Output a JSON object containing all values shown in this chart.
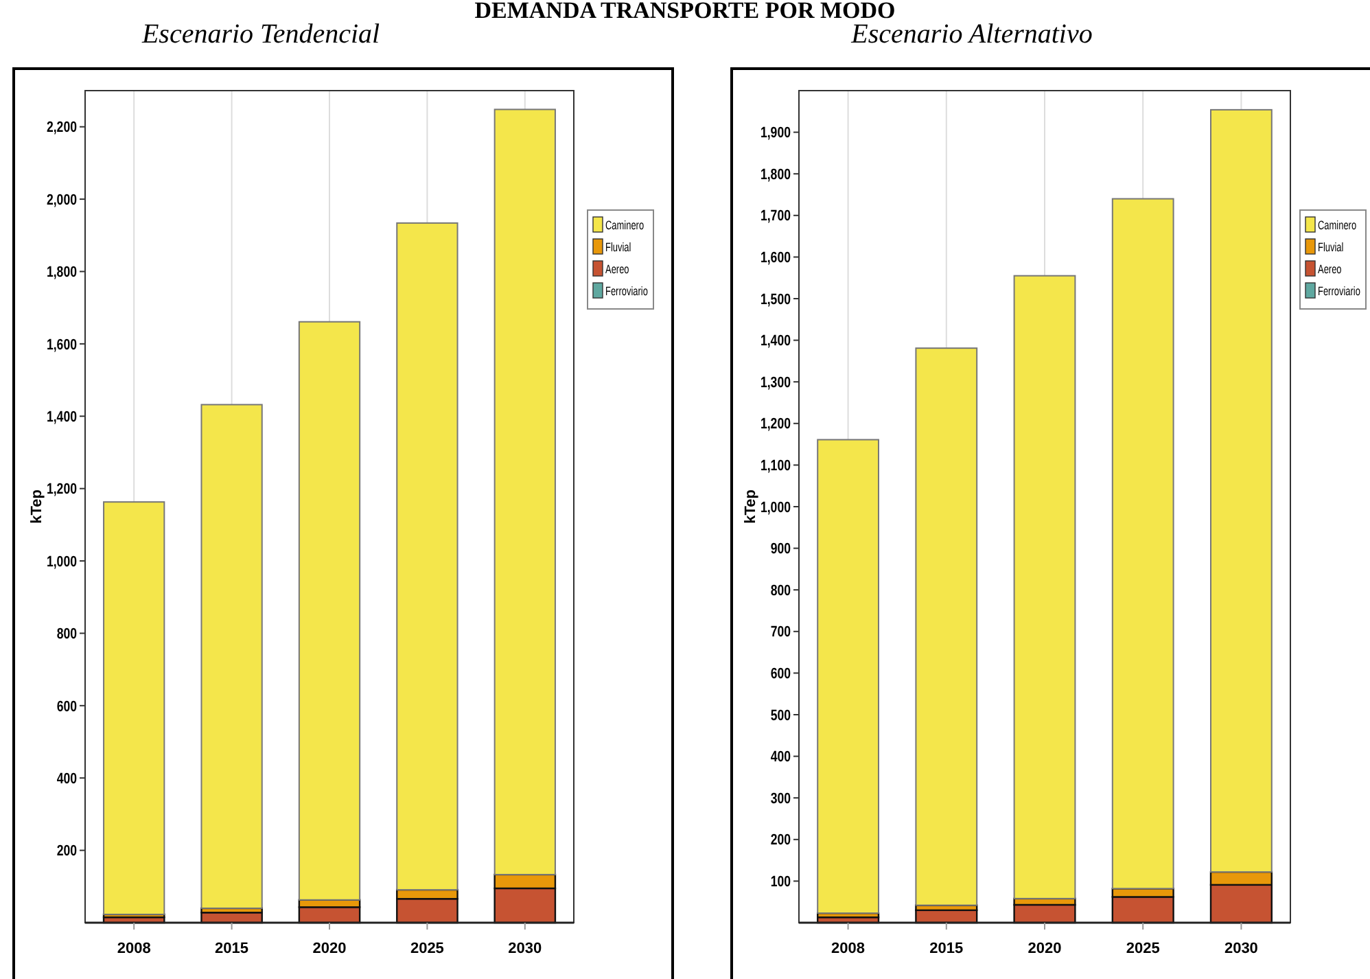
{
  "chart_data": [
    {
      "type": "bar",
      "title": "DEMANDA TRANSPORTE POR MODO",
      "subtitle": "Escenario Tendencial",
      "ylabel": "kTep",
      "categories": [
        "2008",
        "2015",
        "2020",
        "2025",
        "2030"
      ],
      "stacked": true,
      "grid": "x",
      "legend": "right",
      "ylim": [
        0,
        2300
      ],
      "yticks": [
        {
          "value": 200,
          "label": "200"
        },
        {
          "value": 400,
          "label": "400"
        },
        {
          "value": 600,
          "label": "600"
        },
        {
          "value": 800,
          "label": "800"
        },
        {
          "value": 1000,
          "label": "1,000"
        },
        {
          "value": 1200,
          "label": "1,200"
        },
        {
          "value": 1400,
          "label": "1,400"
        },
        {
          "value": 1600,
          "label": "1,600"
        },
        {
          "value": 1800,
          "label": "1,800"
        },
        {
          "value": 2000,
          "label": "2,000"
        },
        {
          "value": 2200,
          "label": "2,200"
        }
      ],
      "series": [
        {
          "name": "Ferroviario",
          "color": "#5fa8a0",
          "values": [
            null,
            null,
            null,
            null,
            null
          ]
        },
        {
          "name": "Aereo",
          "color": "#c65332",
          "values": [
            15,
            28,
            43,
            66,
            95
          ]
        },
        {
          "name": "Fluvial",
          "color": "#e8980a",
          "values": [
            8,
            12,
            20,
            25,
            38
          ]
        },
        {
          "name": "Caminero",
          "color": "#f4e64b",
          "values": [
            1140,
            1392,
            1598,
            1843,
            2115
          ]
        }
      ]
    },
    {
      "type": "bar",
      "subtitle": "Escenario Alternativo",
      "ylabel": "kTep",
      "categories": [
        "2008",
        "2015",
        "2020",
        "2025",
        "2030"
      ],
      "stacked": true,
      "grid": "x",
      "legend": "right",
      "ylim": [
        0,
        2000
      ],
      "yticks": [
        100,
        200,
        300,
        400,
        500,
        600,
        700,
        800,
        900,
        {
          "value": 1000,
          "label": "1,000"
        },
        {
          "value": 1100,
          "label": "1,100"
        },
        {
          "value": 1200,
          "label": "1,200"
        },
        {
          "value": 1300,
          "label": "1,300"
        },
        {
          "value": 1400,
          "label": "1,400"
        },
        {
          "value": 1500,
          "label": "1,500"
        },
        {
          "value": 1600,
          "label": "1,600"
        },
        {
          "value": 1700,
          "label": "1,700"
        },
        {
          "value": 1800,
          "label": "1,800"
        },
        {
          "value": 1900,
          "label": "1,900"
        }
      ],
      "series": [
        {
          "name": "Ferroviario",
          "color": "#5fa8a0",
          "values": [
            null,
            null,
            null,
            null,
            null
          ]
        },
        {
          "name": "Aereo",
          "color": "#c65332",
          "values": [
            13,
            30,
            43,
            62,
            91
          ]
        },
        {
          "name": "Fluvial",
          "color": "#e8980a",
          "values": [
            10,
            12,
            15,
            20,
            31
          ]
        },
        {
          "name": "Caminero",
          "color": "#f4e64b",
          "values": [
            1138,
            1339,
            1497,
            1658,
            1832
          ]
        }
      ]
    }
  ]
}
